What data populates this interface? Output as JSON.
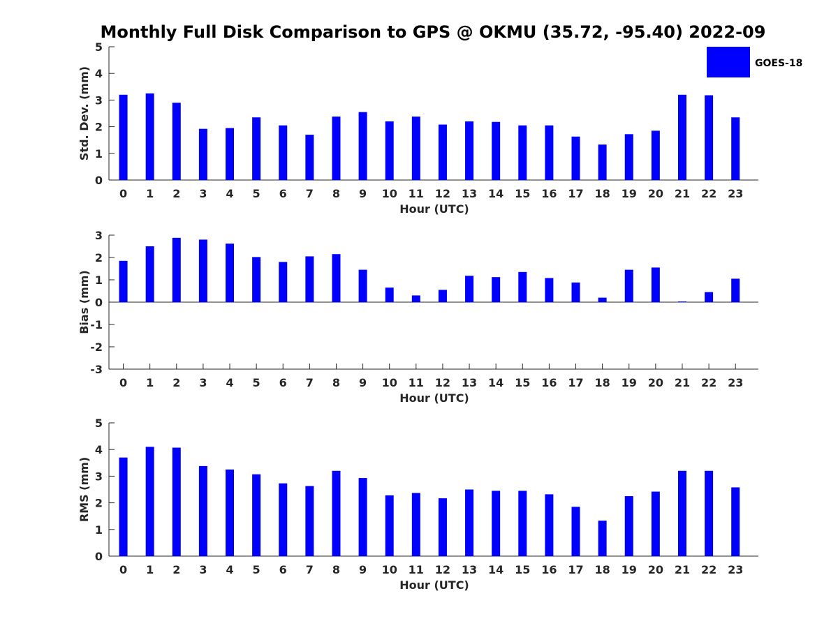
{
  "title": "Monthly Full Disk Comparison to GPS @ OKMU (35.72, -95.40) 2022-09",
  "legend": {
    "label": "GOES-18",
    "color": "#0000ff"
  },
  "chart_data": [
    {
      "type": "bar",
      "ylabel": "Std. Dev. (mm)",
      "xlabel": "Hour (UTC)",
      "ylim": [
        0,
        5
      ],
      "yticks": [
        0,
        1,
        2,
        3,
        4,
        5
      ],
      "categories": [
        "0",
        "1",
        "2",
        "3",
        "4",
        "5",
        "6",
        "7",
        "8",
        "9",
        "10",
        "11",
        "12",
        "13",
        "14",
        "15",
        "16",
        "17",
        "18",
        "19",
        "20",
        "21",
        "22",
        "23"
      ],
      "series": [
        {
          "name": "GOES-18",
          "values": [
            3.2,
            3.25,
            2.9,
            1.92,
            1.95,
            2.35,
            2.05,
            1.7,
            2.38,
            2.55,
            2.2,
            2.38,
            2.08,
            2.2,
            2.18,
            2.05,
            2.05,
            1.63,
            1.33,
            1.72,
            1.85,
            3.2,
            3.18,
            2.35
          ]
        }
      ]
    },
    {
      "type": "bar",
      "ylabel": "Bias (mm)",
      "xlabel": "Hour (UTC)",
      "ylim": [
        -3,
        3
      ],
      "yticks": [
        -3,
        -2,
        -1,
        0,
        1,
        2,
        3
      ],
      "categories": [
        "0",
        "1",
        "2",
        "3",
        "4",
        "5",
        "6",
        "7",
        "8",
        "9",
        "10",
        "11",
        "12",
        "13",
        "14",
        "15",
        "16",
        "17",
        "18",
        "19",
        "20",
        "21",
        "22",
        "23"
      ],
      "series": [
        {
          "name": "GOES-18",
          "values": [
            1.85,
            2.5,
            2.88,
            2.8,
            2.62,
            2.02,
            1.8,
            2.05,
            2.15,
            1.45,
            0.65,
            0.3,
            0.55,
            1.18,
            1.12,
            1.35,
            1.08,
            0.88,
            0.2,
            1.45,
            1.55,
            0.03,
            0.45,
            1.05
          ]
        }
      ]
    },
    {
      "type": "bar",
      "ylabel": "RMS (mm)",
      "xlabel": "Hour (UTC)",
      "ylim": [
        0,
        5
      ],
      "yticks": [
        0,
        1,
        2,
        3,
        4,
        5
      ],
      "categories": [
        "0",
        "1",
        "2",
        "3",
        "4",
        "5",
        "6",
        "7",
        "8",
        "9",
        "10",
        "11",
        "12",
        "13",
        "14",
        "15",
        "16",
        "17",
        "18",
        "19",
        "20",
        "21",
        "22",
        "23"
      ],
      "series": [
        {
          "name": "GOES-18",
          "values": [
            3.7,
            4.1,
            4.07,
            3.38,
            3.25,
            3.07,
            2.73,
            2.63,
            3.2,
            2.93,
            2.28,
            2.37,
            2.17,
            2.5,
            2.45,
            2.45,
            2.32,
            1.85,
            1.33,
            2.25,
            2.42,
            3.2,
            3.2,
            2.58
          ]
        }
      ]
    }
  ]
}
